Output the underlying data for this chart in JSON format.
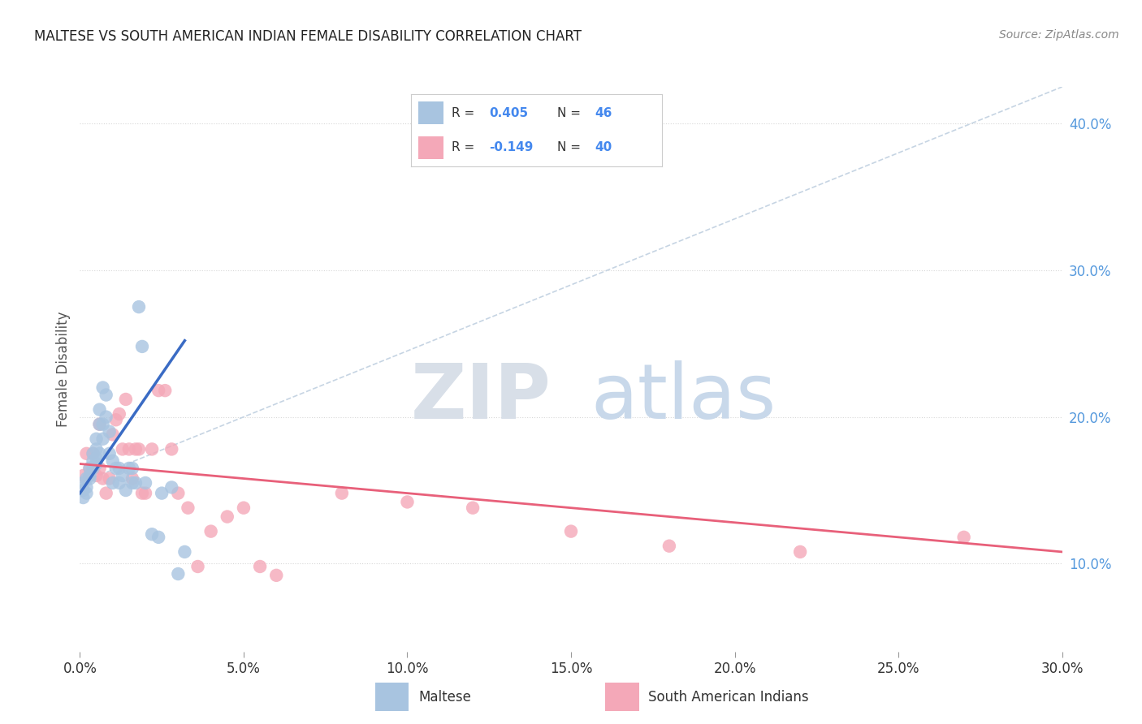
{
  "title": "MALTESE VS SOUTH AMERICAN INDIAN FEMALE DISABILITY CORRELATION CHART",
  "source": "Source: ZipAtlas.com",
  "ylabel": "Female Disability",
  "x_min": 0.0,
  "x_max": 0.3,
  "y_min": 0.04,
  "y_max": 0.425,
  "x_ticks": [
    0.0,
    0.05,
    0.1,
    0.15,
    0.2,
    0.25,
    0.3
  ],
  "y_ticks_right": [
    0.1,
    0.2,
    0.3,
    0.4
  ],
  "maltese_R": 0.405,
  "maltese_N": 46,
  "sai_R": -0.149,
  "sai_N": 40,
  "maltese_color": "#a8c4e0",
  "sai_color": "#f4a8b8",
  "trend_blue": "#3a6bc4",
  "trend_pink": "#e8607a",
  "ref_line_color": "#c0d0e0",
  "background_color": "#ffffff",
  "grid_color": "#d8d8d8",
  "legend_color_blue": "#4488ee",
  "maltese_points_x": [
    0.001,
    0.001,
    0.001,
    0.002,
    0.002,
    0.002,
    0.003,
    0.003,
    0.003,
    0.004,
    0.004,
    0.004,
    0.005,
    0.005,
    0.005,
    0.005,
    0.006,
    0.006,
    0.006,
    0.007,
    0.007,
    0.007,
    0.008,
    0.008,
    0.009,
    0.009,
    0.01,
    0.01,
    0.011,
    0.012,
    0.012,
    0.013,
    0.014,
    0.015,
    0.016,
    0.016,
    0.017,
    0.018,
    0.019,
    0.02,
    0.022,
    0.024,
    0.025,
    0.028,
    0.03,
    0.032
  ],
  "maltese_points_y": [
    0.155,
    0.15,
    0.145,
    0.158,
    0.152,
    0.148,
    0.16,
    0.165,
    0.158,
    0.17,
    0.165,
    0.175,
    0.172,
    0.168,
    0.178,
    0.185,
    0.175,
    0.195,
    0.205,
    0.195,
    0.22,
    0.185,
    0.2,
    0.215,
    0.175,
    0.19,
    0.17,
    0.155,
    0.165,
    0.165,
    0.155,
    0.16,
    0.15,
    0.165,
    0.165,
    0.155,
    0.155,
    0.275,
    0.248,
    0.155,
    0.12,
    0.118,
    0.148,
    0.152,
    0.093,
    0.108
  ],
  "sai_points_x": [
    0.001,
    0.002,
    0.003,
    0.004,
    0.005,
    0.006,
    0.006,
    0.007,
    0.008,
    0.009,
    0.01,
    0.011,
    0.012,
    0.013,
    0.014,
    0.015,
    0.016,
    0.017,
    0.018,
    0.019,
    0.02,
    0.022,
    0.024,
    0.026,
    0.028,
    0.03,
    0.033,
    0.036,
    0.04,
    0.045,
    0.05,
    0.055,
    0.06,
    0.08,
    0.1,
    0.12,
    0.15,
    0.18,
    0.22,
    0.27
  ],
  "sai_points_y": [
    0.16,
    0.175,
    0.165,
    0.175,
    0.16,
    0.195,
    0.165,
    0.158,
    0.148,
    0.158,
    0.188,
    0.198,
    0.202,
    0.178,
    0.212,
    0.178,
    0.158,
    0.178,
    0.178,
    0.148,
    0.148,
    0.178,
    0.218,
    0.218,
    0.178,
    0.148,
    0.138,
    0.098,
    0.122,
    0.132,
    0.138,
    0.098,
    0.092,
    0.148,
    0.142,
    0.138,
    0.122,
    0.112,
    0.108,
    0.118
  ],
  "blue_trend_x": [
    0.0,
    0.032
  ],
  "blue_trend_y": [
    0.148,
    0.252
  ],
  "pink_trend_x": [
    0.0,
    0.3
  ],
  "pink_trend_y": [
    0.168,
    0.108
  ],
  "ref_line_x": [
    0.0,
    0.3
  ],
  "ref_line_y": [
    0.155,
    0.425
  ],
  "legend_label_maltese": "Maltese",
  "legend_label_sai": "South American Indians"
}
